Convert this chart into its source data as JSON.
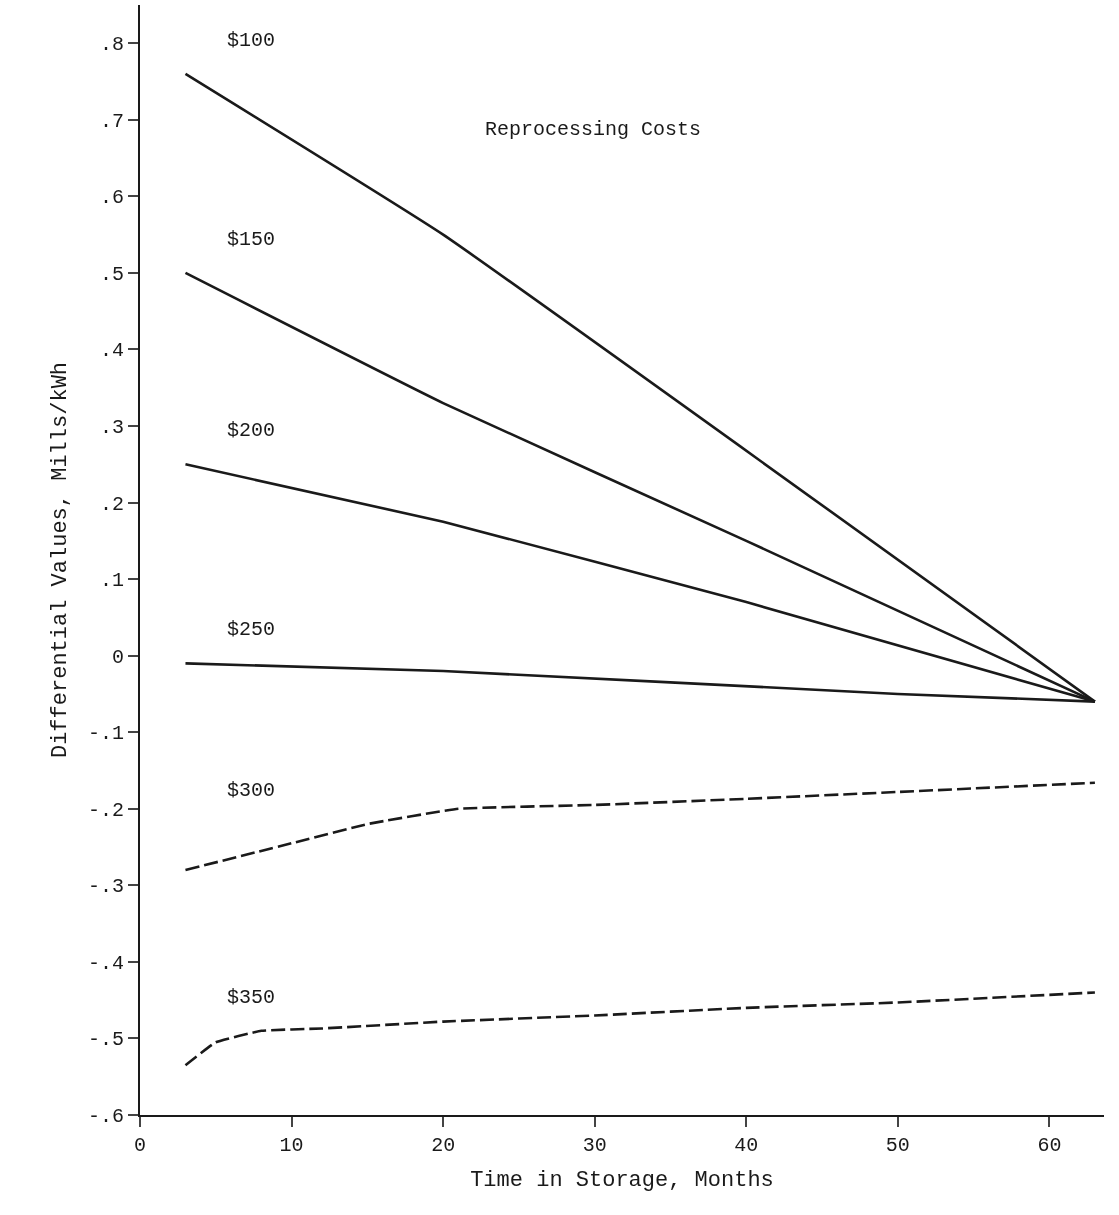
{
  "chart_data": {
    "type": "line",
    "xlabel": "Time in Storage, Months",
    "ylabel": "Differential Values, Mills/kWh",
    "annotations": [
      "Reprocessing Costs"
    ],
    "xlim": [
      0,
      63.6
    ],
    "xticks": [
      0,
      10,
      20,
      30,
      40,
      50,
      60
    ],
    "ylim": [
      -0.6,
      0.85
    ],
    "yticks": [
      {
        "value": -0.6,
        "label": "-.6"
      },
      {
        "value": -0.5,
        "label": "-.5"
      },
      {
        "value": -0.4,
        "label": "-.4"
      },
      {
        "value": -0.3,
        "label": "-.3"
      },
      {
        "value": -0.2,
        "label": "-.2"
      },
      {
        "value": -0.1,
        "label": "-.1"
      },
      {
        "value": 0,
        "label": "0"
      },
      {
        "value": 0.1,
        "label": ".1"
      },
      {
        "value": 0.2,
        "label": ".2"
      },
      {
        "value": 0.3,
        "label": ".3"
      },
      {
        "value": 0.4,
        "label": ".4"
      },
      {
        "value": 0.5,
        "label": ".5"
      },
      {
        "value": 0.6,
        "label": ".6"
      },
      {
        "value": 0.7,
        "label": ".7"
      },
      {
        "value": 0.8,
        "label": ".8"
      }
    ],
    "legend": false,
    "marker": "none",
    "series": [
      {
        "name": "$100",
        "color": "#1a1a1a",
        "line_style": "solid",
        "x": [
          3,
          20,
          63
        ],
        "values": [
          0.76,
          0.55,
          -0.06
        ]
      },
      {
        "name": "$150",
        "color": "#1a1a1a",
        "line_style": "solid",
        "x": [
          3,
          20,
          40,
          63
        ],
        "values": [
          0.5,
          0.33,
          0.15,
          -0.06
        ]
      },
      {
        "name": "$200",
        "color": "#1a1a1a",
        "line_style": "solid",
        "x": [
          3,
          20,
          40,
          63
        ],
        "values": [
          0.25,
          0.175,
          0.07,
          -0.06
        ]
      },
      {
        "name": "$250",
        "color": "#1a1a1a",
        "line_style": "solid",
        "x": [
          3,
          20,
          50,
          63
        ],
        "values": [
          -0.01,
          -0.02,
          -0.05,
          -0.06
        ]
      },
      {
        "name": "$300",
        "color": "#1a1a1a",
        "line_style": "dashed",
        "x": [
          3,
          10,
          15,
          21,
          30,
          40,
          50,
          63
        ],
        "values": [
          -0.28,
          -0.245,
          -0.22,
          -0.2,
          -0.195,
          -0.187,
          -0.178,
          -0.166
        ]
      },
      {
        "name": "$350",
        "color": "#1a1a1a",
        "line_style": "dashed",
        "x": [
          3,
          5,
          8,
          12,
          20,
          30,
          40,
          50,
          63
        ],
        "values": [
          -0.535,
          -0.505,
          -0.49,
          -0.487,
          -0.478,
          -0.47,
          -0.46,
          -0.453,
          -0.44
        ]
      }
    ]
  }
}
